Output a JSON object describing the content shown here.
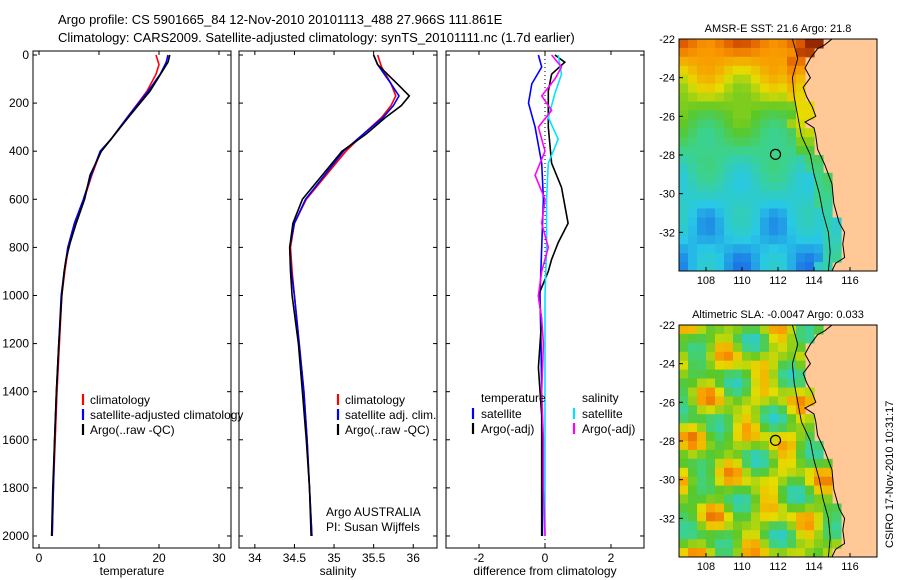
{
  "header": {
    "line1": "Argo profile: CS 5901665_84 12-Nov-2010 20101113_488 27.966S 111.861E",
    "line2": "Climatology: CARS2009. Satellite-adjusted climatology: synTS_20101111.nc (1.7d earlier)"
  },
  "footer": {
    "credit": "CSIRO 17-Nov-2010 10:31:17"
  },
  "colors": {
    "climatology": "#ff0000",
    "satellite": "#0000ff",
    "argo": "#000000",
    "sat_diff_sal": "#00e5ff",
    "argo_diff_sal": "#ff00ff",
    "land": "#ffc896"
  },
  "chart_data": [
    {
      "type": "line",
      "xlabel": "temperature",
      "xlim": [
        -1,
        32
      ],
      "ylim": [
        0,
        2050
      ],
      "y_reversed": true,
      "xticks": [
        0,
        10,
        20,
        30
      ],
      "yticks": [
        0,
        200,
        400,
        600,
        800,
        1000,
        1200,
        1400,
        1600,
        1800,
        2000
      ],
      "legend": [
        "climatology",
        "satellite-adjusted climatology",
        "Argo(..raw -QC)"
      ],
      "series": [
        {
          "name": "climatology",
          "color": "#ff0000",
          "points": [
            [
              19.5,
              0
            ],
            [
              20.0,
              40
            ],
            [
              19.5,
              80
            ],
            [
              18,
              150
            ],
            [
              15,
              250
            ],
            [
              12,
              350
            ],
            [
              10.3,
              400
            ],
            [
              8.8,
              500
            ],
            [
              7.5,
              600
            ],
            [
              6,
              700
            ],
            [
              4.9,
              800
            ],
            [
              4.3,
              900
            ],
            [
              3.8,
              1000
            ],
            [
              3.4,
              1200
            ],
            [
              3.0,
              1400
            ],
            [
              2.7,
              1600
            ],
            [
              2.4,
              1800
            ],
            [
              2.2,
              2000
            ]
          ]
        },
        {
          "name": "satellite-adjusted climatology",
          "color": "#0000ff",
          "points": [
            [
              21.5,
              0
            ],
            [
              21.2,
              30
            ],
            [
              20.2,
              80
            ],
            [
              18.2,
              150
            ],
            [
              15,
              250
            ],
            [
              12,
              350
            ],
            [
              10.2,
              400
            ],
            [
              8.7,
              500
            ],
            [
              7.4,
              600
            ],
            [
              5.9,
              700
            ],
            [
              4.8,
              800
            ],
            [
              4.2,
              900
            ],
            [
              3.7,
              1000
            ],
            [
              3.3,
              1200
            ],
            [
              2.9,
              1400
            ],
            [
              2.6,
              1600
            ],
            [
              2.4,
              1800
            ],
            [
              2.2,
              2000
            ]
          ]
        },
        {
          "name": "Argo(..raw -QC)",
          "color": "#000000",
          "points": [
            [
              21.8,
              0
            ],
            [
              21.5,
              30
            ],
            [
              20.5,
              70
            ],
            [
              18.5,
              150
            ],
            [
              15.2,
              250
            ],
            [
              12,
              350
            ],
            [
              10.4,
              400
            ],
            [
              8.5,
              500
            ],
            [
              7.6,
              600
            ],
            [
              6.2,
              700
            ],
            [
              5.2,
              780
            ],
            [
              4.5,
              850
            ],
            [
              4.2,
              900
            ],
            [
              3.8,
              1000
            ],
            [
              3.3,
              1200
            ],
            [
              2.9,
              1400
            ],
            [
              2.6,
              1600
            ],
            [
              2.3,
              1800
            ],
            [
              2.1,
              2000
            ]
          ]
        }
      ]
    },
    {
      "type": "line",
      "xlabel": "salinity",
      "xlim": [
        33.8,
        36.3
      ],
      "ylim": [
        0,
        2050
      ],
      "y_reversed": true,
      "xticks": [
        34,
        34.5,
        35,
        35.5,
        36
      ],
      "legend": [
        "climatology",
        "satellite adj. clim.",
        "Argo(..raw -QC)"
      ],
      "annotations": [
        "Argo AUSTRALIA",
        "PI: Susan Wijffels"
      ],
      "series": [
        {
          "name": "climatology",
          "color": "#ff0000",
          "points": [
            [
              35.55,
              0
            ],
            [
              35.6,
              50
            ],
            [
              35.72,
              120
            ],
            [
              35.78,
              170
            ],
            [
              35.72,
              210
            ],
            [
              35.6,
              260
            ],
            [
              35.4,
              320
            ],
            [
              35.15,
              400
            ],
            [
              34.9,
              500
            ],
            [
              34.65,
              600
            ],
            [
              34.5,
              700
            ],
            [
              34.45,
              800
            ],
            [
              34.47,
              900
            ],
            [
              34.5,
              1000
            ],
            [
              34.56,
              1200
            ],
            [
              34.62,
              1400
            ],
            [
              34.66,
              1600
            ],
            [
              34.69,
              1800
            ],
            [
              34.72,
              2000
            ]
          ]
        },
        {
          "name": "satellite adj. clim.",
          "color": "#0000ff",
          "points": [
            [
              35.5,
              0
            ],
            [
              35.55,
              40
            ],
            [
              35.7,
              110
            ],
            [
              35.82,
              170
            ],
            [
              35.75,
              210
            ],
            [
              35.62,
              260
            ],
            [
              35.4,
              320
            ],
            [
              35.12,
              400
            ],
            [
              34.88,
              500
            ],
            [
              34.64,
              600
            ],
            [
              34.5,
              700
            ],
            [
              34.44,
              800
            ],
            [
              34.46,
              900
            ],
            [
              34.5,
              1000
            ],
            [
              34.56,
              1200
            ],
            [
              34.62,
              1400
            ],
            [
              34.66,
              1600
            ],
            [
              34.69,
              1800
            ],
            [
              34.72,
              2000
            ]
          ]
        },
        {
          "name": "Argo(..raw -QC)",
          "color": "#000000",
          "points": [
            [
              35.5,
              0
            ],
            [
              35.55,
              40
            ],
            [
              35.8,
              120
            ],
            [
              35.95,
              170
            ],
            [
              35.85,
              210
            ],
            [
              35.65,
              260
            ],
            [
              35.4,
              330
            ],
            [
              35.1,
              400
            ],
            [
              34.85,
              500
            ],
            [
              34.6,
              600
            ],
            [
              34.48,
              700
            ],
            [
              34.44,
              800
            ],
            [
              34.45,
              900
            ],
            [
              34.47,
              1000
            ],
            [
              34.55,
              1200
            ],
            [
              34.6,
              1400
            ],
            [
              34.65,
              1600
            ],
            [
              34.69,
              1800
            ],
            [
              34.71,
              2000
            ]
          ]
        }
      ]
    },
    {
      "type": "line",
      "xlabel": "difference from climatology",
      "xlim": [
        -3,
        3
      ],
      "ylim": [
        0,
        2050
      ],
      "y_reversed": true,
      "xticks": [
        -2,
        0,
        2
      ],
      "legend_titles": [
        "temperature",
        "salinity"
      ],
      "legend": [
        "satellite",
        "Argo(-adj)",
        "satellite",
        "Argo(-adj)"
      ],
      "series": [
        {
          "name": "satellite",
          "color": "#0000ff",
          "points": [
            [
              -0.2,
              0
            ],
            [
              -0.1,
              50
            ],
            [
              -0.4,
              120
            ],
            [
              -0.5,
              200
            ],
            [
              -0.3,
              300
            ],
            [
              -0.1,
              450
            ],
            [
              -0.05,
              600
            ],
            [
              -0.1,
              800
            ],
            [
              -0.15,
              1000
            ],
            [
              -0.12,
              1200
            ],
            [
              -0.1,
              1400
            ],
            [
              -0.08,
              1600
            ],
            [
              -0.08,
              1800
            ],
            [
              -0.08,
              2000
            ]
          ]
        },
        {
          "name": "Argo(-adj)",
          "color": "#000000",
          "points": [
            [
              0.3,
              0
            ],
            [
              0.6,
              30
            ],
            [
              0.2,
              80
            ],
            [
              0.1,
              150
            ],
            [
              0.1,
              300
            ],
            [
              0.2,
              450
            ],
            [
              0.5,
              550
            ],
            [
              0.7,
              700
            ],
            [
              0.4,
              780
            ],
            [
              0.2,
              850
            ],
            [
              0.1,
              900
            ],
            [
              -0.2,
              1000
            ],
            [
              -0.1,
              1100
            ],
            [
              -0.2,
              1300
            ],
            [
              -0.1,
              1500
            ],
            [
              -0.1,
              1700
            ],
            [
              -0.1,
              1900
            ],
            [
              -0.1,
              2000
            ]
          ]
        },
        {
          "name": "satellite",
          "color": "#00e5ff",
          "points": [
            [
              0.4,
              0
            ],
            [
              0.5,
              80
            ],
            [
              0.3,
              160
            ],
            [
              0.1,
              260
            ],
            [
              0.4,
              350
            ],
            [
              0.1,
              450
            ],
            [
              0.05,
              600
            ],
            [
              0.05,
              800
            ],
            [
              0.0,
              1000
            ],
            [
              0.0,
              1200
            ],
            [
              0.0,
              1400
            ],
            [
              0.0,
              1600
            ],
            [
              0.0,
              1800
            ],
            [
              0.0,
              2000
            ]
          ]
        },
        {
          "name": "Argo(-adj)",
          "color": "#ff00ff",
          "points": [
            [
              0.2,
              0
            ],
            [
              0.5,
              50
            ],
            [
              0.3,
              100
            ],
            [
              -0.1,
              170
            ],
            [
              0.2,
              230
            ],
            [
              -0.2,
              300
            ],
            [
              0.0,
              400
            ],
            [
              -0.3,
              500
            ],
            [
              0.0,
              600
            ],
            [
              -0.1,
              700
            ],
            [
              0.1,
              800
            ],
            [
              -0.1,
              900
            ],
            [
              -0.2,
              1000
            ],
            [
              -0.1,
              1100
            ],
            [
              -0.05,
              1200
            ],
            [
              -0.1,
              1400
            ],
            [
              -0.05,
              1600
            ],
            [
              -0.05,
              1800
            ],
            [
              0.0,
              2000
            ]
          ]
        }
      ]
    },
    {
      "type": "heatmap",
      "title": "AMSR-E SST: 21.6  Argo: 21.8",
      "xlim": [
        106.5,
        117.5
      ],
      "ylim": [
        -34,
        -22
      ],
      "xticks": [
        108,
        110,
        112,
        114,
        116
      ],
      "yticks": [
        -22,
        -24,
        -26,
        -28,
        -30,
        -32
      ],
      "marker": [
        111.861,
        -27.966
      ]
    },
    {
      "type": "heatmap",
      "title": "Altimetric SLA: -0.0047  Argo: 0.033",
      "xlim": [
        106.5,
        117.5
      ],
      "ylim": [
        -34,
        -22
      ],
      "xticks": [
        108,
        110,
        112,
        114,
        116
      ],
      "yticks": [
        -22,
        -24,
        -26,
        -28,
        -30,
        -32
      ],
      "marker": [
        111.861,
        -27.966
      ]
    }
  ]
}
